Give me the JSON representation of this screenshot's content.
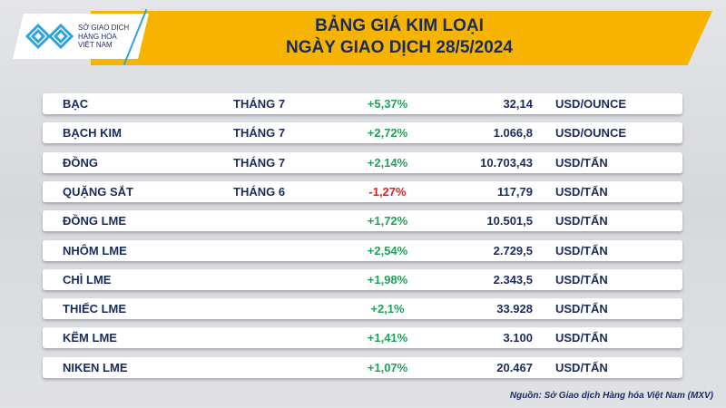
{
  "header": {
    "title_line1": "BẢNG GIÁ KIM LOẠI",
    "title_line2": "NGÀY GIAO DỊCH 28/5/2024",
    "logo_text": [
      "SỞ GIAO DỊCH",
      "HÀNG HÓA",
      "VIỆT NAM"
    ]
  },
  "colors": {
    "banner": "#f6b400",
    "navy": "#1b2b5e",
    "up": "#1fa35a",
    "down": "#e02020"
  },
  "rows": [
    {
      "name": "BẠC",
      "month": "THÁNG 7",
      "change": "+5,37%",
      "price": "32,14",
      "unit": "USD/OUNCE",
      "dir": "up"
    },
    {
      "name": "BẠCH KIM",
      "month": "THÁNG 7",
      "change": "+2,72%",
      "price": "1.066,8",
      "unit": "USD/OUNCE",
      "dir": "up"
    },
    {
      "name": "ĐỒNG",
      "month": "THÁNG 7",
      "change": "+2,14%",
      "price": "10.703,43",
      "unit": "USD/TẤN",
      "dir": "up"
    },
    {
      "name": "QUẶNG SẮT",
      "month": "THÁNG 6",
      "change": "-1,27%",
      "price": "117,79",
      "unit": "USD/TẤN",
      "dir": "down"
    },
    {
      "name": "ĐỒNG LME",
      "month": "",
      "change": "+1,72%",
      "price": "10.501,5",
      "unit": "USD/TẤN",
      "dir": "up"
    },
    {
      "name": "NHÔM LME",
      "month": "",
      "change": "+2,54%",
      "price": "2.729,5",
      "unit": "USD/TẤN",
      "dir": "up"
    },
    {
      "name": "CHÌ LME",
      "month": "",
      "change": "+1,98%",
      "price": "2.343,5",
      "unit": "USD/TẤN",
      "dir": "up"
    },
    {
      "name": "THIẾC LME",
      "month": "",
      "change": "+2,1%",
      "price": "33.928",
      "unit": "USD/TẤN",
      "dir": "up"
    },
    {
      "name": "KẼM LME",
      "month": "",
      "change": "+1,41%",
      "price": "3.100",
      "unit": "USD/TẤN",
      "dir": "up"
    },
    {
      "name": "NIKEN LME",
      "month": "",
      "change": "+1,07%",
      "price": "20.467",
      "unit": "USD/TẤN",
      "dir": "up"
    }
  ],
  "source": "Nguồn: Sở Giao dịch Hàng hóa Việt Nam (MXV)"
}
